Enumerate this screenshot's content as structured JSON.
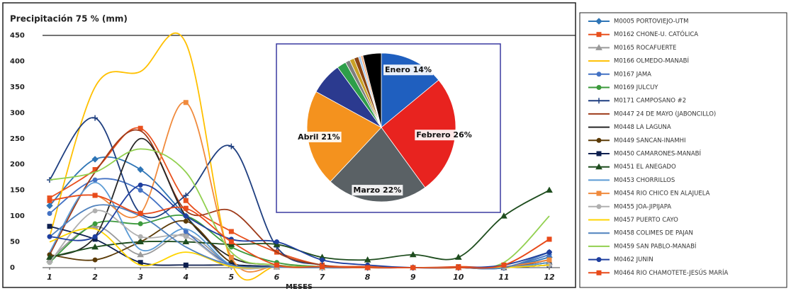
{
  "chart_data": [
    {
      "type": "line",
      "title": "Precipitación 75 % (mm)",
      "x_label": "MESES",
      "x": [
        1,
        2,
        3,
        4,
        5,
        6,
        7,
        8,
        9,
        10,
        11,
        12
      ],
      "xlim": [
        1,
        12
      ],
      "xticks": [
        1,
        2,
        3,
        4,
        5,
        6,
        7,
        8,
        9,
        10,
        11,
        12
      ],
      "ylim": [
        0,
        450
      ],
      "yticks": [
        0,
        50,
        100,
        150,
        200,
        250,
        300,
        350,
        400,
        450
      ],
      "grid": false,
      "legend": "right",
      "smooth": true,
      "series": [
        {
          "name": "M0005 PORTOVIEJO-UTM",
          "color": "#2e75b6",
          "marker": "diamond",
          "values": [
            120,
            210,
            190,
            100,
            10,
            2,
            0,
            0,
            0,
            0,
            0,
            20
          ]
        },
        {
          "name": "M0162 CHONE-U. CATÓLICA",
          "color": "#e8501e",
          "marker": "square",
          "values": [
            135,
            190,
            270,
            130,
            70,
            30,
            5,
            2,
            0,
            2,
            5,
            55
          ]
        },
        {
          "name": "M0165 ROCAFUERTE",
          "color": "#9a9a9a",
          "marker": "triangle",
          "values": [
            15,
            80,
            25,
            65,
            5,
            1,
            0,
            0,
            0,
            0,
            0,
            10
          ]
        },
        {
          "name": "M0166 OLMEDO-MANABÍ",
          "color": "#ffc000",
          "marker": "none",
          "values": [
            60,
            350,
            380,
            435,
            10,
            2,
            0,
            0,
            0,
            0,
            0,
            10
          ]
        },
        {
          "name": "M0167 JAMA",
          "color": "#4472c4",
          "marker": "circle",
          "values": [
            105,
            170,
            150,
            70,
            5,
            2,
            0,
            0,
            0,
            0,
            0,
            25
          ]
        },
        {
          "name": "M0169 JULCUY",
          "color": "#3c9a3c",
          "marker": "circle",
          "values": [
            10,
            85,
            85,
            100,
            40,
            10,
            2,
            0,
            0,
            0,
            0,
            10
          ]
        },
        {
          "name": "M0171 CAMPOSANO #2",
          "color": "#1f3f80",
          "marker": "plus",
          "values": [
            170,
            290,
            105,
            140,
            235,
            40,
            5,
            0,
            0,
            0,
            0,
            30
          ]
        },
        {
          "name": "M0447 24 DE MAYO (JABONCILLO)",
          "color": "#9e3b1a",
          "marker": "none",
          "values": [
            25,
            185,
            265,
            110,
            110,
            30,
            5,
            0,
            0,
            0,
            0,
            15
          ]
        },
        {
          "name": "M0448 LA LAGUNA",
          "color": "#262626",
          "marker": "none",
          "values": [
            20,
            60,
            250,
            100,
            20,
            5,
            0,
            0,
            0,
            0,
            0,
            5
          ]
        },
        {
          "name": "M0449 SANCAN-INAMHI",
          "color": "#5b3a06",
          "marker": "circle",
          "values": [
            25,
            15,
            50,
            90,
            10,
            2,
            0,
            0,
            0,
            0,
            0,
            10
          ]
        },
        {
          "name": "M0450 CAMARONES-MANABÍ",
          "color": "#0d1f4f",
          "marker": "square",
          "values": [
            80,
            55,
            10,
            5,
            5,
            2,
            0,
            0,
            0,
            0,
            0,
            5
          ]
        },
        {
          "name": "M0451 EL ANEGADO",
          "color": "#1e4d1e",
          "marker": "triangle",
          "values": [
            20,
            40,
            50,
            50,
            45,
            45,
            20,
            15,
            25,
            20,
            100,
            150
          ]
        },
        {
          "name": "M0453 CHORRILLOS",
          "color": "#5b9bd5",
          "marker": "none",
          "values": [
            30,
            165,
            35,
            75,
            5,
            1,
            0,
            0,
            0,
            0,
            0,
            10
          ]
        },
        {
          "name": "M0454 RIO CHICO EN ALAJUELA",
          "color": "#f08a3c",
          "marker": "square",
          "values": [
            130,
            140,
            105,
            320,
            20,
            2,
            0,
            0,
            0,
            0,
            2,
            15
          ]
        },
        {
          "name": "M0455 JOA-JIPIJAPA",
          "color": "#b0b0b0",
          "marker": "circle",
          "values": [
            10,
            110,
            60,
            60,
            2,
            1,
            0,
            0,
            0,
            0,
            0,
            5
          ]
        },
        {
          "name": "M0457 PUERTO CAYO",
          "color": "#ffd400",
          "marker": "none",
          "values": [
            50,
            75,
            5,
            30,
            2,
            1,
            0,
            0,
            0,
            0,
            0,
            5
          ]
        },
        {
          "name": "M0458 COLIMES DE PAJAN",
          "color": "#4f81bd",
          "marker": "none",
          "values": [
            60,
            120,
            100,
            40,
            5,
            1,
            0,
            0,
            0,
            0,
            0,
            30
          ]
        },
        {
          "name": "M0459 SAN PABLO-MANABÍ",
          "color": "#92d050",
          "marker": "none",
          "values": [
            170,
            185,
            230,
            185,
            30,
            5,
            2,
            0,
            0,
            0,
            10,
            100
          ]
        },
        {
          "name": "M0462 JUNIN",
          "color": "#1f3f9f",
          "marker": "circle",
          "values": [
            60,
            60,
            160,
            100,
            55,
            50,
            15,
            5,
            0,
            0,
            5,
            30
          ]
        },
        {
          "name": "M0464 RIO CHAMOTETE-JESÚS MARÍA",
          "color": "#e84a1a",
          "marker": "square",
          "values": [
            130,
            140,
            105,
            115,
            50,
            5,
            2,
            0,
            0,
            0,
            5,
            55
          ]
        }
      ]
    },
    {
      "type": "pie",
      "categories": [
        "Enero",
        "Febrero",
        "Marzo",
        "Abril",
        null,
        null,
        null,
        null,
        null,
        null,
        null,
        null
      ],
      "values": [
        14,
        26,
        22,
        21,
        7,
        2,
        1,
        1,
        1,
        0.5,
        0.5,
        4
      ],
      "value_labels": [
        "14%",
        "26%",
        "22%",
        "21%",
        null,
        null,
        null,
        null,
        null,
        null,
        null,
        null
      ],
      "colors": [
        "#1f5fbf",
        "#e8231f",
        "#5a6165",
        "#f4921e",
        "#2b3a8f",
        "#2e9e4a",
        "#7f7f7f",
        "#c9a227",
        "#8b4513",
        "#a0c8f0",
        "#f4b183",
        "#000000"
      ]
    }
  ]
}
